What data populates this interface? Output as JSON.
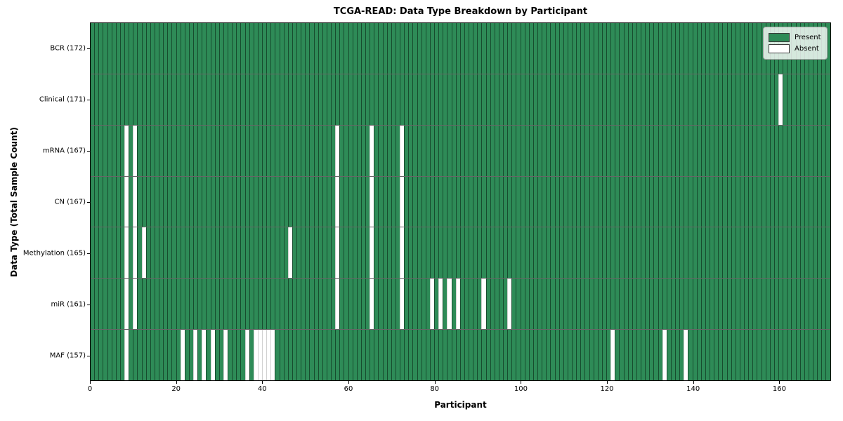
{
  "chart_data": {
    "type": "heatmap",
    "title": "TCGA-READ: Data Type Breakdown by Participant",
    "xlabel": "Participant",
    "ylabel": "Data Type (Total Sample Count)",
    "x_max": 172,
    "x_ticks": [
      0,
      20,
      40,
      60,
      80,
      100,
      120,
      140,
      160
    ],
    "legend_position": "upper right",
    "grid": "cell-edges",
    "colors": {
      "present": "#2e8b57",
      "absent": "#ffffff"
    },
    "legend": [
      {
        "label": "Present",
        "color": "#2e8b57"
      },
      {
        "label": "Absent",
        "color": "#ffffff"
      }
    ],
    "rows": [
      {
        "label": "BCR (172)",
        "total_samples": 172,
        "absent_participants": []
      },
      {
        "label": "Clinical (171)",
        "total_samples": 171,
        "absent_participants": [
          160
        ]
      },
      {
        "label": "mRNA (167)",
        "total_samples": 167,
        "absent_participants": [
          8,
          10,
          57,
          65,
          72
        ]
      },
      {
        "label": "CN (167)",
        "total_samples": 167,
        "absent_participants": [
          8,
          10,
          57,
          65,
          72
        ]
      },
      {
        "label": "Methylation (165)",
        "total_samples": 165,
        "absent_participants": [
          8,
          10,
          12,
          46,
          57,
          65,
          72
        ]
      },
      {
        "label": "miR (161)",
        "total_samples": 161,
        "absent_participants": [
          8,
          10,
          57,
          65,
          72,
          79,
          81,
          83,
          85,
          91,
          97
        ]
      },
      {
        "label": "MAF (157)",
        "total_samples": 157,
        "absent_participants": [
          8,
          21,
          24,
          26,
          28,
          31,
          36,
          38,
          39,
          40,
          41,
          42,
          121,
          133,
          138
        ]
      }
    ]
  }
}
